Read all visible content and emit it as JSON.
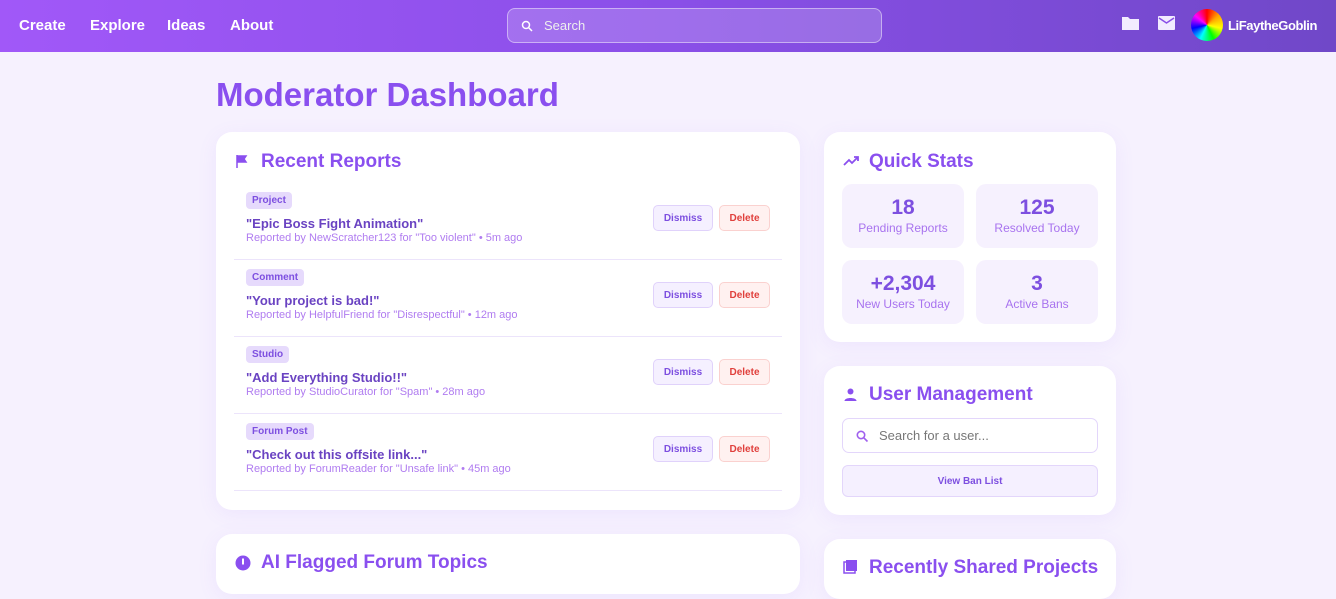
{
  "nav": {
    "links": [
      "Create",
      "Explore",
      "Ideas",
      "About"
    ],
    "search_placeholder": "Search",
    "username": "LiFaytheGoblin"
  },
  "page_title": "Moderator Dashboard",
  "reports": {
    "title": "Recent Reports",
    "dismiss": "Dismiss",
    "delete": "Delete",
    "items": [
      {
        "type": "Project",
        "title": "\"Epic Boss Fight Animation\"",
        "meta": "Reported by NewScratcher123 for \"Too violent\" • 5m ago"
      },
      {
        "type": "Comment",
        "title": "\"Your project is bad!\"",
        "meta": "Reported by HelpfulFriend for \"Disrespectful\" • 12m ago"
      },
      {
        "type": "Studio",
        "title": "\"Add Everything Studio!!\"",
        "meta": "Reported by StudioCurator for \"Spam\" • 28m ago"
      },
      {
        "type": "Forum Post",
        "title": "\"Check out this offsite link...\"",
        "meta": "Reported by ForumReader for \"Unsafe link\" • 45m ago"
      }
    ]
  },
  "stats": {
    "title": "Quick Stats",
    "items": [
      {
        "value": "18",
        "label": "Pending Reports"
      },
      {
        "value": "125",
        "label": "Resolved Today"
      },
      {
        "value": "+2,304",
        "label": "New Users Today"
      },
      {
        "value": "3",
        "label": "Active Bans"
      }
    ]
  },
  "users": {
    "title": "User Management",
    "search_placeholder": "Search for a user...",
    "ban_list": "View Ban List"
  },
  "ai_flagged": {
    "title": "AI Flagged Forum Topics"
  },
  "shared": {
    "title": "Recently Shared Projects"
  },
  "colors": {
    "accent": "#8a4fef",
    "danger": "#e0403c"
  }
}
